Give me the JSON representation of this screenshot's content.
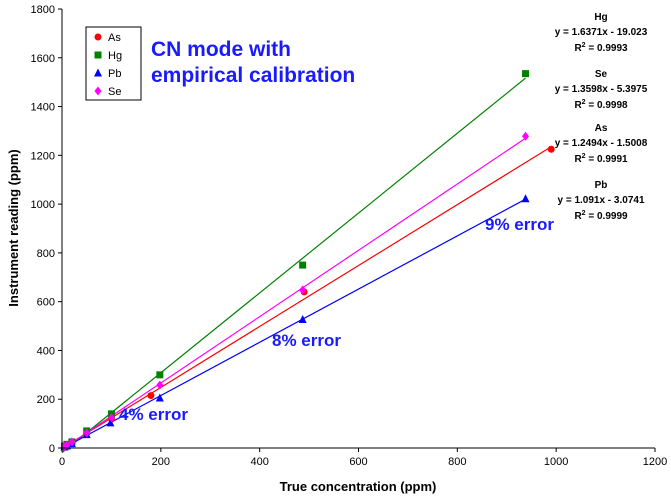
{
  "chart_data": {
    "type": "scatter",
    "title": [
      "CN mode with",
      "empirical calibration"
    ],
    "title_color": "#1a1aff",
    "xlabel": "True concentration (ppm)",
    "ylabel": "Instrument reading (ppm)",
    "xlim": [
      0,
      1200
    ],
    "ylim": [
      0,
      1800
    ],
    "x_ticks": [
      "0",
      "200",
      "400",
      "600",
      "800",
      "1000",
      "1200"
    ],
    "y_ticks": [
      "0",
      "200",
      "400",
      "600",
      "800",
      "1000",
      "1200",
      "1400",
      "1600",
      "1800"
    ],
    "grid": false,
    "legend_position": "top-left",
    "series": [
      {
        "name": "As",
        "color": "#ff0000",
        "marker": "circle",
        "points": [
          [
            5,
            5
          ],
          [
            10,
            10
          ],
          [
            20,
            22
          ],
          [
            50,
            60
          ],
          [
            100,
            120
          ],
          [
            180,
            215
          ],
          [
            490,
            640
          ],
          [
            990,
            1225
          ]
        ],
        "fit": {
          "slope": 1.2494,
          "intercept": -1.5008,
          "x_range": [
            0,
            990
          ],
          "name": "As",
          "equation": "y = 1.2494x - 1.5008",
          "r2_label": "R",
          "r2_sup": "2",
          "r2_value": " = 0.9991"
        }
      },
      {
        "name": "Hg",
        "color": "#008000",
        "marker": "square",
        "points": [
          [
            5,
            8
          ],
          [
            10,
            15
          ],
          [
            20,
            25
          ],
          [
            50,
            70
          ],
          [
            100,
            140
          ],
          [
            198,
            300
          ],
          [
            487,
            750
          ],
          [
            938,
            1535
          ]
        ],
        "fit": {
          "slope": 1.6371,
          "intercept": -19.023,
          "x_range": [
            0,
            938
          ],
          "name": "Hg",
          "equation": "y = 1.6371x - 19.023",
          "r2_label": "R",
          "r2_sup": "2",
          "r2_value": " = 0.9993"
        }
      },
      {
        "name": "Pb",
        "color": "#0000ff",
        "marker": "triangle",
        "points": [
          [
            5,
            4
          ],
          [
            10,
            8
          ],
          [
            20,
            18
          ],
          [
            50,
            55
          ],
          [
            98,
            103
          ],
          [
            198,
            205
          ],
          [
            487,
            527
          ],
          [
            938,
            1022
          ]
        ],
        "fit": {
          "slope": 1.091,
          "intercept": -3.0741,
          "x_range": [
            0,
            938
          ],
          "name": "Pb",
          "equation": "y = 1.091x - 3.0741",
          "r2_label": "R",
          "r2_sup": "2",
          "r2_value": " = 0.9999"
        }
      },
      {
        "name": "Se",
        "color": "#ff00ff",
        "marker": "diamond",
        "points": [
          [
            5,
            6
          ],
          [
            10,
            12
          ],
          [
            20,
            25
          ],
          [
            50,
            62
          ],
          [
            100,
            125
          ],
          [
            198,
            258
          ],
          [
            487,
            648
          ],
          [
            938,
            1278
          ]
        ],
        "fit": {
          "slope": 1.3598,
          "intercept": -5.3975,
          "x_range": [
            0,
            938
          ],
          "name": "Se",
          "equation": "y = 1.3598x - 5.3975",
          "r2_label": "R",
          "r2_sup": "2",
          "r2_value": " = 0.9998"
        }
      }
    ],
    "equation_order": [
      "Hg",
      "Se",
      "As",
      "Pb"
    ],
    "annotations": [
      {
        "text": "4% error",
        "color": "#1a1aff"
      },
      {
        "text": "8% error",
        "color": "#1a1aff"
      },
      {
        "text": "9% error",
        "color": "#1a1aff"
      }
    ]
  }
}
